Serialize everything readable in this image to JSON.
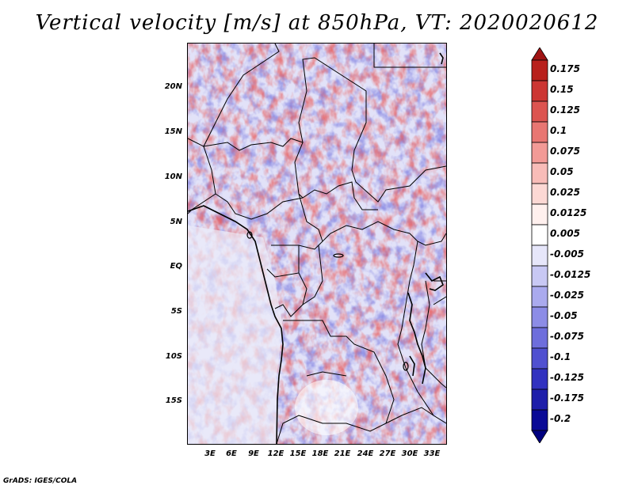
{
  "title": "Vertical velocity [m/s] at 850hPa, VT: 2020020612",
  "credit": "GrADS: IGES/COLA",
  "map": {
    "lat_labels": [
      "20N",
      "15N",
      "10N",
      "5N",
      "EQ",
      "5S",
      "10S",
      "15S"
    ],
    "lon_labels": [
      "3E",
      "6E",
      "9E",
      "12E",
      "15E",
      "18E",
      "21E",
      "24E",
      "27E",
      "30E",
      "33E"
    ]
  },
  "colorbar": {
    "labels": [
      "0.175",
      "0.15",
      "0.125",
      "0.1",
      "0.075",
      "0.05",
      "0.025",
      "0.0125",
      "0.005",
      "-0.005",
      "-0.0125",
      "-0.025",
      "-0.05",
      "-0.075",
      "-0.1",
      "-0.125",
      "-0.175",
      "-0.2"
    ],
    "colors": [
      "#a01414",
      "#b8201c",
      "#cc3633",
      "#dc5450",
      "#e87672",
      "#f29a96",
      "#f8bcb8",
      "#fcd8d4",
      "#fff0ee",
      "#ffffff",
      "#e6e6fa",
      "#c8c8f4",
      "#aaaaee",
      "#8c8ce6",
      "#6e6edc",
      "#5050d0",
      "#3232c0",
      "#1e1eaa",
      "#0a0a96",
      "#000080"
    ]
  }
}
